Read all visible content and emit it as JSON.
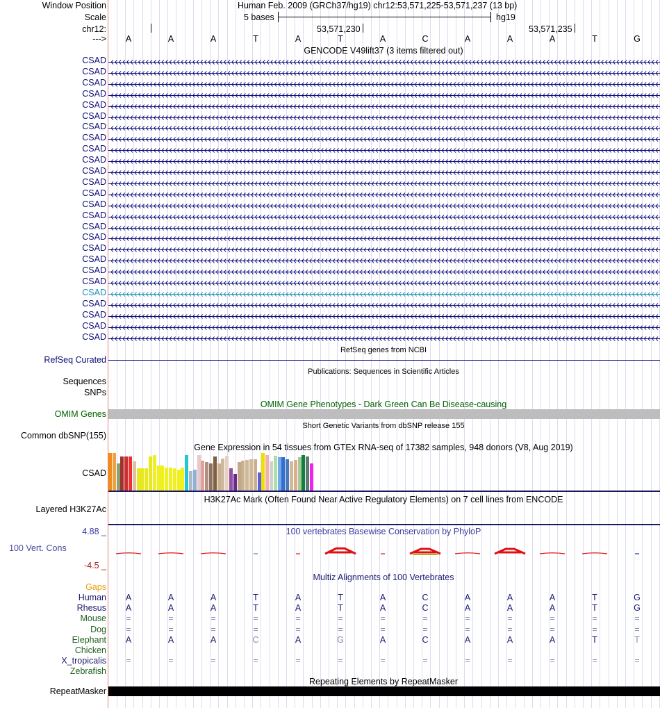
{
  "header": {
    "window_position_label": "Window Position",
    "window_position_text": "Human Feb. 2009 (GRCh37/hg19)   chr12:53,571,225-53,571,237 (13 bp)",
    "scale_label": "Scale",
    "scale_text": "5 bases",
    "scale_db": "hg19",
    "chrom_label": "chr12:",
    "coord1": "53,571,230",
    "coord2": "53,571,235",
    "strand_label": "--->"
  },
  "bases": [
    "A",
    "A",
    "A",
    "T",
    "A",
    "T",
    "A",
    "C",
    "A",
    "A",
    "A",
    "T",
    "G"
  ],
  "gencode": {
    "title": "GENCODE V49lift37 (3 items filtered out)",
    "gene_labels": [
      "CSAD",
      "CSAD",
      "CSAD",
      "CSAD",
      "CSAD",
      "CSAD",
      "CSAD",
      "CSAD",
      "CSAD",
      "CSAD",
      "CSAD",
      "CSAD",
      "CSAD",
      "CSAD",
      "CSAD",
      "CSAD",
      "CSAD",
      "CSAD",
      "CSAD",
      "CSAD",
      "CSAD",
      "CSAD",
      "CSAD",
      "CSAD",
      "CSAD",
      "CSAD"
    ],
    "highlight_index": 21,
    "gene_color": "#0c0c78",
    "highlight_color": "#1a8fb8"
  },
  "refseq": {
    "title": "RefSeq genes from NCBI",
    "label": "RefSeq Curated",
    "color": "#0c0c78"
  },
  "publications": {
    "title": "Publications: Sequences in Scientific Articles",
    "label_sequences": "Sequences",
    "label_snps": "SNPs"
  },
  "omim": {
    "title": "OMIM Gene Phenotypes - Dark Green Can Be Disease-causing",
    "label": "OMIM Genes",
    "color": "#006400"
  },
  "dbsnp": {
    "title": "Short Genetic Variants from dbSNP release 155",
    "label": "Common dbSNP(155)"
  },
  "gtex": {
    "title": "Gene Expression in 54 tissues from GTEx RNA-seq of 17382 samples, 948 donors (V8, Aug 2019)",
    "label": "CSAD",
    "bars": [
      {
        "v": 1.0,
        "c": "#f08c1a"
      },
      {
        "v": 1.0,
        "c": "#f0a040"
      },
      {
        "v": 0.72,
        "c": "#8aa070"
      },
      {
        "v": 0.9,
        "c": "#a03030"
      },
      {
        "v": 0.9,
        "c": "#c83030"
      },
      {
        "v": 0.9,
        "c": "#f03030"
      },
      {
        "v": 0.78,
        "c": "#e0c0a0"
      },
      {
        "v": 0.6,
        "c": "#e8e820"
      },
      {
        "v": 0.6,
        "c": "#e8e820"
      },
      {
        "v": 0.6,
        "c": "#e8e820"
      },
      {
        "v": 0.9,
        "c": "#e8e820"
      },
      {
        "v": 0.95,
        "c": "#f0f020"
      },
      {
        "v": 0.66,
        "c": "#f0f020"
      },
      {
        "v": 0.66,
        "c": "#f0f020"
      },
      {
        "v": 0.62,
        "c": "#f0f020"
      },
      {
        "v": 0.62,
        "c": "#f0f020"
      },
      {
        "v": 0.6,
        "c": "#f0f020"
      },
      {
        "v": 0.55,
        "c": "#f0f020"
      },
      {
        "v": 0.62,
        "c": "#f0f020"
      },
      {
        "v": 0.95,
        "c": "#20c8d0"
      },
      {
        "v": 0.52,
        "c": "#b0b8c8"
      },
      {
        "v": 0.55,
        "c": "#8fb0d8"
      },
      {
        "v": 0.95,
        "c": "#e8c8c8"
      },
      {
        "v": 0.8,
        "c": "#e0a0a0"
      },
      {
        "v": 0.75,
        "c": "#b09080"
      },
      {
        "v": 0.72,
        "c": "#907060"
      },
      {
        "v": 0.9,
        "c": "#806040"
      },
      {
        "v": 0.72,
        "c": "#c8b090"
      },
      {
        "v": 0.85,
        "c": "#d0b8a0"
      },
      {
        "v": 0.92,
        "c": "#e8d0c0"
      },
      {
        "v": 0.6,
        "c": "#9050a0"
      },
      {
        "v": 0.45,
        "c": "#6a2890"
      },
      {
        "v": 0.75,
        "c": "#c0a888"
      },
      {
        "v": 0.8,
        "c": "#c8b090"
      },
      {
        "v": 0.82,
        "c": "#d0b898"
      },
      {
        "v": 0.84,
        "c": "#d0b898"
      },
      {
        "v": 0.84,
        "c": "#c8b090"
      },
      {
        "v": 0.48,
        "c": "#5a60e0"
      },
      {
        "v": 1.0,
        "c": "#f0e000"
      },
      {
        "v": 0.95,
        "c": "#f0b0b0"
      },
      {
        "v": 0.78,
        "c": "#d0d0d0"
      },
      {
        "v": 0.92,
        "c": "#a8e0a8"
      },
      {
        "v": 0.88,
        "c": "#78a8e8"
      },
      {
        "v": 0.88,
        "c": "#3070d0"
      },
      {
        "v": 0.84,
        "c": "#4878b8"
      },
      {
        "v": 0.78,
        "c": "#d0b898"
      },
      {
        "v": 0.82,
        "c": "#d8b090"
      },
      {
        "v": 0.88,
        "c": "#a8c898"
      },
      {
        "v": 0.95,
        "c": "#108040"
      },
      {
        "v": 0.9,
        "c": "#607870"
      },
      {
        "v": 0.72,
        "c": "#f020f0"
      }
    ]
  },
  "h3k27ac": {
    "title": "H3K27Ac Mark (Often Found Near Active Regulatory Elements) on 7 cell lines from ENCODE",
    "label": "Layered H3K27Ac"
  },
  "phylop": {
    "title": "100 vertebrates Basewise Conservation by PhyloP",
    "label": "100 Vert. Cons",
    "max_label": "4.88 _",
    "min_label": "-4.5 _",
    "label_color": "#4a4aa0",
    "max_color": "#3a3aa0",
    "min_color": "#a02020",
    "scores": [
      -0.5,
      -0.6,
      -0.55,
      0.0,
      0.3,
      2.2,
      -0.2,
      2.0,
      -0.5,
      2.0,
      -0.6,
      -0.4,
      0.0
    ],
    "pos_color": "#2020c0",
    "neg_color": "#e01010"
  },
  "multiz": {
    "title": "Multiz Alignments of 100 Vertebrates",
    "title_color": "#1a1a70",
    "gaps_label": "Gaps",
    "gaps_color": "#e8a010",
    "species": [
      {
        "name": "Human",
        "color": "#1a1a70",
        "bases": [
          "A",
          "A",
          "A",
          "T",
          "A",
          "T",
          "A",
          "C",
          "A",
          "A",
          "A",
          "T",
          "G"
        ],
        "dim": []
      },
      {
        "name": "Rhesus",
        "color": "#1a1a70",
        "bases": [
          "A",
          "A",
          "A",
          "T",
          "A",
          "T",
          "A",
          "C",
          "A",
          "A",
          "A",
          "T",
          "G"
        ],
        "dim": []
      },
      {
        "name": "Mouse",
        "color": "#206020",
        "bases": [
          "=",
          "=",
          "=",
          "=",
          "=",
          "=",
          "=",
          "=",
          "=",
          "=",
          "=",
          "=",
          "="
        ],
        "dim": []
      },
      {
        "name": "Dog",
        "color": "#206020",
        "bases": [
          "=",
          "=",
          "=",
          "=",
          "=",
          "=",
          "=",
          "=",
          "=",
          "=",
          "=",
          "=",
          "="
        ],
        "dim": []
      },
      {
        "name": "Elephant",
        "color": "#206020",
        "bases": [
          "A",
          "A",
          "A",
          "C",
          "A",
          "G",
          "A",
          "C",
          "A",
          "A",
          "A",
          "T",
          "T"
        ],
        "dim": [
          3,
          5,
          12
        ]
      },
      {
        "name": "Chicken",
        "color": "#206020",
        "bases": [],
        "dim": []
      },
      {
        "name": "X_tropicalis",
        "color": "#1a1a70",
        "bases": [
          "=",
          "=",
          "=",
          "=",
          "=",
          "=",
          "=",
          "=",
          "=",
          "=",
          "=",
          "=",
          "="
        ],
        "dim": []
      },
      {
        "name": "Zebrafish",
        "color": "#206020",
        "bases": [],
        "dim": []
      }
    ]
  },
  "repeatmasker": {
    "title": "Repeating Elements by RepeatMasker",
    "label": "RepeatMasker"
  }
}
